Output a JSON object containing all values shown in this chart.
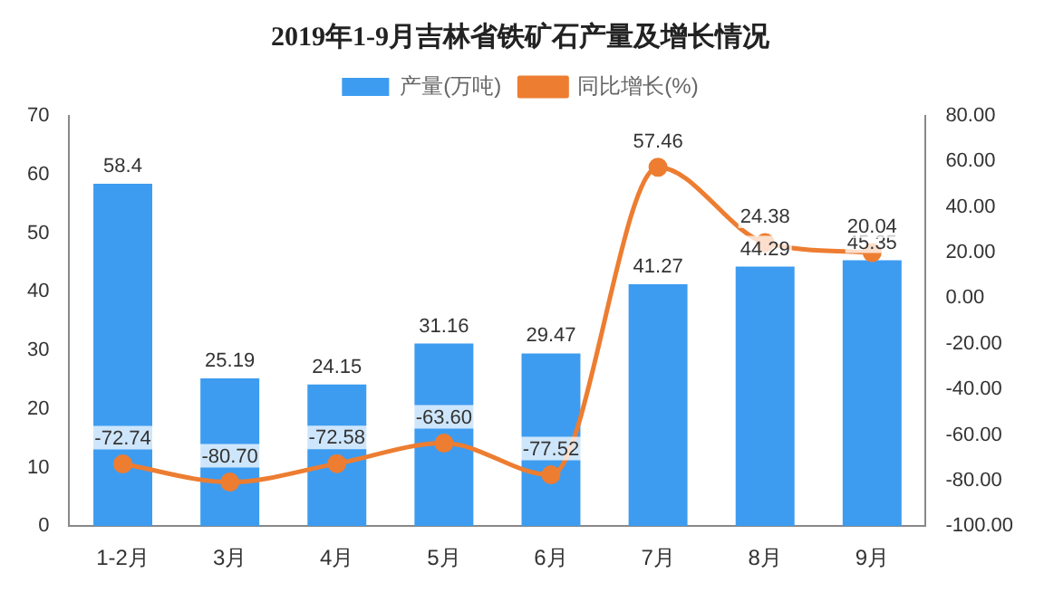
{
  "chart_data": {
    "type": "bar",
    "title": "2019年1-9月吉林省铁矿石产量及增长情况",
    "categories": [
      "1-2月",
      "3月",
      "4月",
      "5月",
      "6月",
      "7月",
      "8月",
      "9月"
    ],
    "series": [
      {
        "name": "产量(万吨)",
        "color": "#3d9cf0",
        "values": [
          58.4,
          25.19,
          24.15,
          31.16,
          29.47,
          41.27,
          44.29,
          45.35
        ],
        "value_labels": [
          "58.4",
          "25.19",
          "24.15",
          "31.16",
          "29.47",
          "41.27",
          "44.29",
          "45.35"
        ]
      },
      {
        "name": "同比增长(%)",
        "type": "line",
        "axis": "y2",
        "color": "#ed7d31",
        "marker": "circle",
        "values": [
          -72.74,
          -80.7,
          -72.58,
          -63.6,
          -77.52,
          57.46,
          24.38,
          20.04
        ],
        "value_labels": [
          "-72.74",
          "-80.70",
          "-72.58",
          "-63.60",
          "-77.52",
          "57.46",
          "24.38",
          "20.04"
        ]
      }
    ],
    "ylim": [
      0,
      70
    ],
    "yticks": [
      0,
      10,
      20,
      30,
      40,
      50,
      60,
      70
    ],
    "y2lim": [
      -100,
      80
    ],
    "y2ticks": [
      {
        "value": -100,
        "label": "-100.00"
      },
      {
        "value": -80,
        "label": "-80.00"
      },
      {
        "value": -60,
        "label": "-60.00"
      },
      {
        "value": -40,
        "label": "-40.00"
      },
      {
        "value": -20,
        "label": "-20.00"
      },
      {
        "value": 0,
        "label": "0.00"
      },
      {
        "value": 20,
        "label": "20.00"
      },
      {
        "value": 40,
        "label": "40.00"
      },
      {
        "value": 60,
        "label": "60.00"
      },
      {
        "value": 80,
        "label": "80.00"
      }
    ],
    "legend": "top",
    "grid": false
  }
}
